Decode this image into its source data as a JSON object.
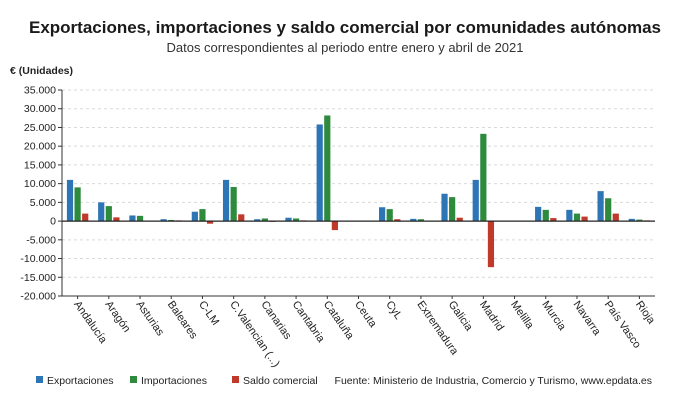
{
  "chart_data": {
    "type": "bar",
    "title": "Exportaciones, importaciones y saldo comercial por comunidades autónomas",
    "subtitle": "Datos correspondientes al periodo entre enero y abril de 2021",
    "ylabel": "€ (Unidades)",
    "ylim": [
      -20000,
      35000
    ],
    "yticks": [
      35000,
      30000,
      25000,
      20000,
      15000,
      10000,
      5000,
      0,
      -5000,
      -10000,
      -15000,
      -20000
    ],
    "ytick_labels": [
      "35.000",
      "30.000",
      "25.000",
      "20.000",
      "15.000",
      "10.000",
      "5.000",
      "0",
      "-5.000",
      "-10.000",
      "-15.000",
      "-20.000"
    ],
    "grid": true,
    "legend_position": "bottom-left",
    "categories": [
      "Andalucía",
      "Aragón",
      "Asturias",
      "Baleares",
      "C-LM",
      "C.Valencian (...)",
      "Canarias",
      "Cantabria",
      "Cataluña",
      "Ceuta",
      "CyL",
      "Extremadura",
      "Galicia",
      "Madrid",
      "Melilla",
      "Murcia",
      "Navarra",
      "País Vasco",
      "Rioja"
    ],
    "series": [
      {
        "name": "Exportaciones",
        "color": "#2e75b6",
        "values": [
          11000,
          5000,
          1500,
          500,
          2500,
          11000,
          500,
          900,
          25800,
          0,
          3700,
          600,
          7300,
          11000,
          0,
          3800,
          3000,
          8000,
          600
        ]
      },
      {
        "name": "Importaciones",
        "color": "#2e8b3e",
        "values": [
          9000,
          4000,
          1400,
          300,
          3200,
          9100,
          700,
          700,
          28200,
          0,
          3200,
          500,
          6400,
          23300,
          0,
          3000,
          2000,
          6100,
          400
        ]
      },
      {
        "name": "Saldo comercial",
        "color": "#c0392b",
        "values": [
          2000,
          1000,
          100,
          200,
          -700,
          1800,
          -200,
          200,
          -2400,
          0,
          500,
          100,
          900,
          -12300,
          0,
          800,
          1200,
          2000,
          200
        ]
      }
    ],
    "source": "Fuente: Ministerio de Industria, Comercio y Turismo, www.epdata.es"
  }
}
